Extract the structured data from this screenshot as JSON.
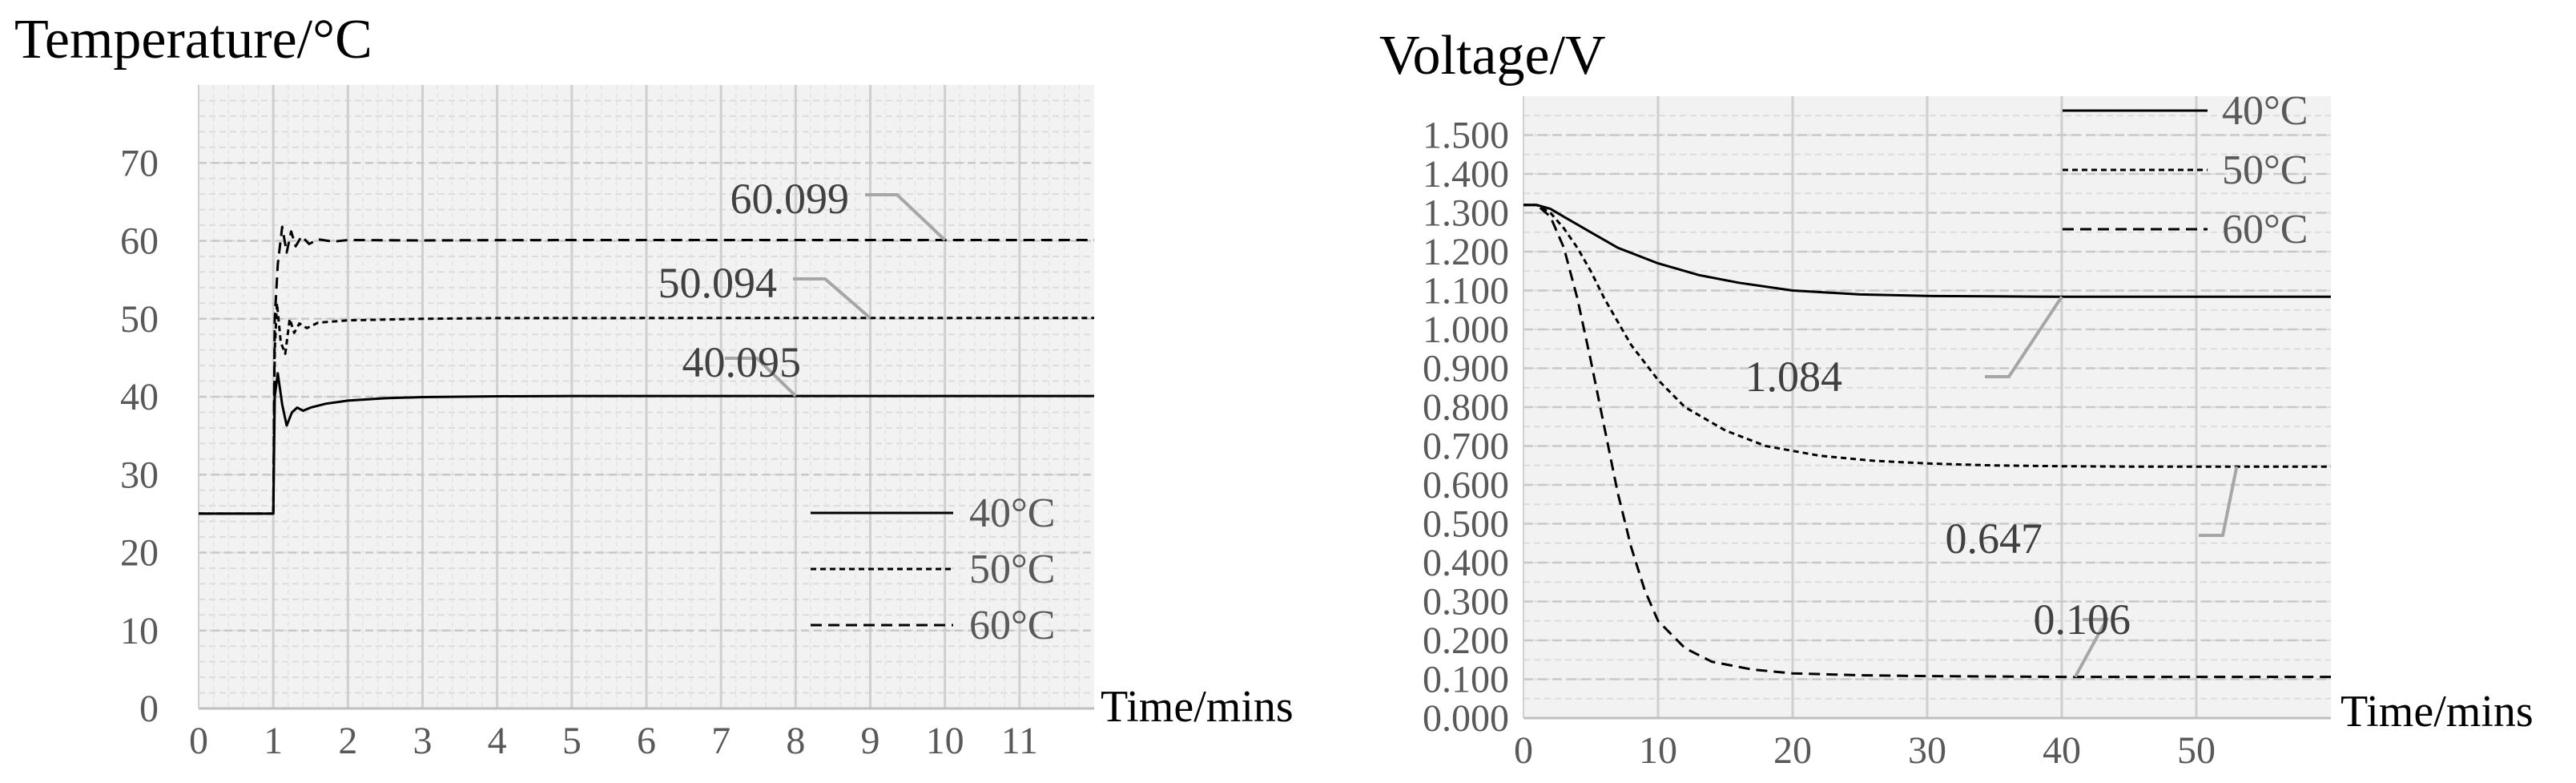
{
  "chart_data": [
    {
      "type": "line",
      "title": "Temperature/°C",
      "xlabel": "Time/mins",
      "ylabel": "Temperature/°C",
      "xlim": [
        0,
        12
      ],
      "ylim": [
        0,
        80
      ],
      "x_ticks": [
        "0",
        "1",
        "2",
        "3",
        "4",
        "5",
        "6",
        "7",
        "8",
        "9",
        "10",
        "11"
      ],
      "y_ticks": [
        "0",
        "10",
        "20",
        "30",
        "40",
        "50",
        "60",
        "70"
      ],
      "grid": true,
      "background": "#f2f2f2",
      "legend_position": "bottom-right",
      "series": [
        {
          "name": "40°C",
          "style": "solid",
          "final": 40.095,
          "points": [
            [
              0,
              25
            ],
            [
              1,
              25
            ],
            [
              1.02,
              40
            ],
            [
              1.06,
              43
            ],
            [
              1.12,
              39
            ],
            [
              1.18,
              36.3
            ],
            [
              1.25,
              38
            ],
            [
              1.32,
              38.6
            ],
            [
              1.4,
              38.2
            ],
            [
              1.5,
              38.6
            ],
            [
              1.7,
              39.1
            ],
            [
              2,
              39.5
            ],
            [
              2.5,
              39.8
            ],
            [
              3,
              39.95
            ],
            [
              4,
              40.05
            ],
            [
              5,
              40.09
            ],
            [
              6,
              40.09
            ],
            [
              8,
              40.095
            ],
            [
              10,
              40.095
            ],
            [
              12,
              40.095
            ]
          ]
        },
        {
          "name": "50°C",
          "style": "dash-fine",
          "final": 50.094,
          "points": [
            [
              0,
              25
            ],
            [
              1,
              25
            ],
            [
              1.02,
              46
            ],
            [
              1.05,
              52
            ],
            [
              1.1,
              47
            ],
            [
              1.16,
              45.5
            ],
            [
              1.22,
              50
            ],
            [
              1.28,
              48.2
            ],
            [
              1.35,
              49.4
            ],
            [
              1.45,
              48.8
            ],
            [
              1.6,
              49.5
            ],
            [
              2,
              49.8
            ],
            [
              3,
              50.0
            ],
            [
              4,
              50.09
            ],
            [
              6,
              50.094
            ],
            [
              9,
              50.094
            ],
            [
              12,
              50.094
            ]
          ]
        },
        {
          "name": "60°C",
          "style": "dash-coarse",
          "final": 60.099,
          "points": [
            [
              0,
              25
            ],
            [
              1,
              25
            ],
            [
              1.02,
              50
            ],
            [
              1.06,
              57
            ],
            [
              1.12,
              61.8
            ],
            [
              1.18,
              58.5
            ],
            [
              1.24,
              61.2
            ],
            [
              1.3,
              59.3
            ],
            [
              1.38,
              60.6
            ],
            [
              1.48,
              59.6
            ],
            [
              1.6,
              60.2
            ],
            [
              1.8,
              59.9
            ],
            [
              2,
              60.1
            ],
            [
              3,
              60.05
            ],
            [
              4,
              60.09
            ],
            [
              6,
              60.099
            ],
            [
              10,
              60.099
            ],
            [
              12,
              60.099
            ]
          ]
        }
      ],
      "annotations": [
        {
          "text": "60.099",
          "series": "60°C",
          "x": 10,
          "y": 60.099
        },
        {
          "text": "50.094",
          "series": "50°C",
          "x": 9,
          "y": 50.094
        },
        {
          "text": "40.095",
          "series": "40°C",
          "x": 8,
          "y": 40.095
        }
      ]
    },
    {
      "type": "line",
      "title": "Voltage/V",
      "xlabel": "Time/mins",
      "ylabel": "Voltage/V",
      "xlim": [
        0,
        60
      ],
      "ylim": [
        0,
        1.6
      ],
      "x_ticks": [
        "0",
        "10",
        "20",
        "30",
        "40",
        "50"
      ],
      "y_ticks": [
        "0.000",
        "0.100",
        "0.200",
        "0.300",
        "0.400",
        "0.500",
        "0.600",
        "0.700",
        "0.800",
        "0.900",
        "1.000",
        "1.100",
        "1.200",
        "1.300",
        "1.400",
        "1.500"
      ],
      "grid": true,
      "background": "#f2f2f2",
      "legend_position": "top-right",
      "series": [
        {
          "name": "40°C",
          "style": "solid",
          "final": 1.084,
          "points": [
            [
              0,
              1.32
            ],
            [
              1,
              1.32
            ],
            [
              2,
              1.31
            ],
            [
              3,
              1.29
            ],
            [
              5,
              1.25
            ],
            [
              7,
              1.21
            ],
            [
              10,
              1.17
            ],
            [
              13,
              1.14
            ],
            [
              16,
              1.12
            ],
            [
              20,
              1.1
            ],
            [
              25,
              1.09
            ],
            [
              30,
              1.086
            ],
            [
              35,
              1.085
            ],
            [
              40,
              1.084
            ],
            [
              50,
              1.084
            ],
            [
              60,
              1.084
            ]
          ]
        },
        {
          "name": "50°C",
          "style": "dash-fine",
          "final": 0.647,
          "points": [
            [
              0,
              1.32
            ],
            [
              1,
              1.32
            ],
            [
              2,
              1.3
            ],
            [
              3,
              1.26
            ],
            [
              4,
              1.21
            ],
            [
              5,
              1.15
            ],
            [
              6,
              1.08
            ],
            [
              7,
              1.02
            ],
            [
              8,
              0.96
            ],
            [
              10,
              0.87
            ],
            [
              12,
              0.8
            ],
            [
              15,
              0.74
            ],
            [
              18,
              0.7
            ],
            [
              22,
              0.675
            ],
            [
              26,
              0.662
            ],
            [
              30,
              0.655
            ],
            [
              35,
              0.65
            ],
            [
              40,
              0.648
            ],
            [
              45,
              0.647
            ],
            [
              60,
              0.647
            ]
          ]
        },
        {
          "name": "60°C",
          "style": "dash-coarse",
          "final": 0.106,
          "points": [
            [
              0,
              1.32
            ],
            [
              1,
              1.32
            ],
            [
              2,
              1.29
            ],
            [
              3,
              1.21
            ],
            [
              4,
              1.08
            ],
            [
              5,
              0.92
            ],
            [
              6,
              0.75
            ],
            [
              7,
              0.58
            ],
            [
              8,
              0.44
            ],
            [
              9,
              0.33
            ],
            [
              10,
              0.25
            ],
            [
              12,
              0.18
            ],
            [
              14,
              0.145
            ],
            [
              17,
              0.125
            ],
            [
              20,
              0.115
            ],
            [
              25,
              0.11
            ],
            [
              30,
              0.108
            ],
            [
              40,
              0.106
            ],
            [
              50,
              0.106
            ],
            [
              60,
              0.106
            ]
          ]
        }
      ],
      "annotations": [
        {
          "text": "1.084",
          "series": "40°C",
          "x": 40,
          "y": 1.084
        },
        {
          "text": "0.647",
          "series": "50°C",
          "x": 53,
          "y": 0.647
        },
        {
          "text": "0.106",
          "series": "60°C",
          "x": 41,
          "y": 0.106
        }
      ]
    }
  ]
}
